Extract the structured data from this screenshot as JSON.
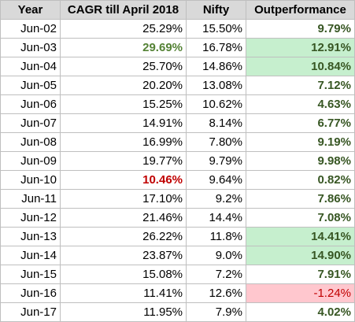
{
  "headers": [
    "Year",
    "CAGR till April 2018",
    "Nifty",
    "Outperformance"
  ],
  "colors": {
    "header_bg": "#d9d9d9",
    "highlight_green_bg": "#c6efce",
    "highlight_red_bg": "#ffc7ce",
    "green_text": "#548235",
    "red_text": "#c00000",
    "outperformance_text": "#375623"
  },
  "rows": [
    {
      "year": "Jun-02",
      "cagr": "25.29%",
      "nifty": "15.50%",
      "out": "9.79%"
    },
    {
      "year": "Jun-03",
      "cagr": "29.69%",
      "nifty": "16.78%",
      "out": "12.91%"
    },
    {
      "year": "Jun-04",
      "cagr": "25.70%",
      "nifty": "14.86%",
      "out": "10.84%"
    },
    {
      "year": "Jun-05",
      "cagr": "20.20%",
      "nifty": "13.08%",
      "out": "7.12%"
    },
    {
      "year": "Jun-06",
      "cagr": "15.25%",
      "nifty": "10.62%",
      "out": "4.63%"
    },
    {
      "year": "Jun-07",
      "cagr": "14.91%",
      "nifty": "8.14%",
      "out": "6.77%"
    },
    {
      "year": "Jun-08",
      "cagr": "16.99%",
      "nifty": "7.80%",
      "out": "9.19%"
    },
    {
      "year": "Jun-09",
      "cagr": "19.77%",
      "nifty": "9.79%",
      "out": "9.98%"
    },
    {
      "year": "Jun-10",
      "cagr": "10.46%",
      "nifty": "9.64%",
      "out": "0.82%"
    },
    {
      "year": "Jun-11",
      "cagr": "17.10%",
      "nifty": "9.2%",
      "out": "7.86%"
    },
    {
      "year": "Jun-12",
      "cagr": "21.46%",
      "nifty": "14.4%",
      "out": "7.08%"
    },
    {
      "year": "Jun-13",
      "cagr": "26.22%",
      "nifty": "11.8%",
      "out": "14.41%"
    },
    {
      "year": "Jun-14",
      "cagr": "23.87%",
      "nifty": "9.0%",
      "out": "14.90%"
    },
    {
      "year": "Jun-15",
      "cagr": "15.08%",
      "nifty": "7.2%",
      "out": "7.91%"
    },
    {
      "year": "Jun-16",
      "cagr": "11.41%",
      "nifty": "12.6%",
      "out": "-1.24%"
    },
    {
      "year": "Jun-17",
      "cagr": "11.95%",
      "nifty": "7.9%",
      "out": "4.02%"
    }
  ]
}
